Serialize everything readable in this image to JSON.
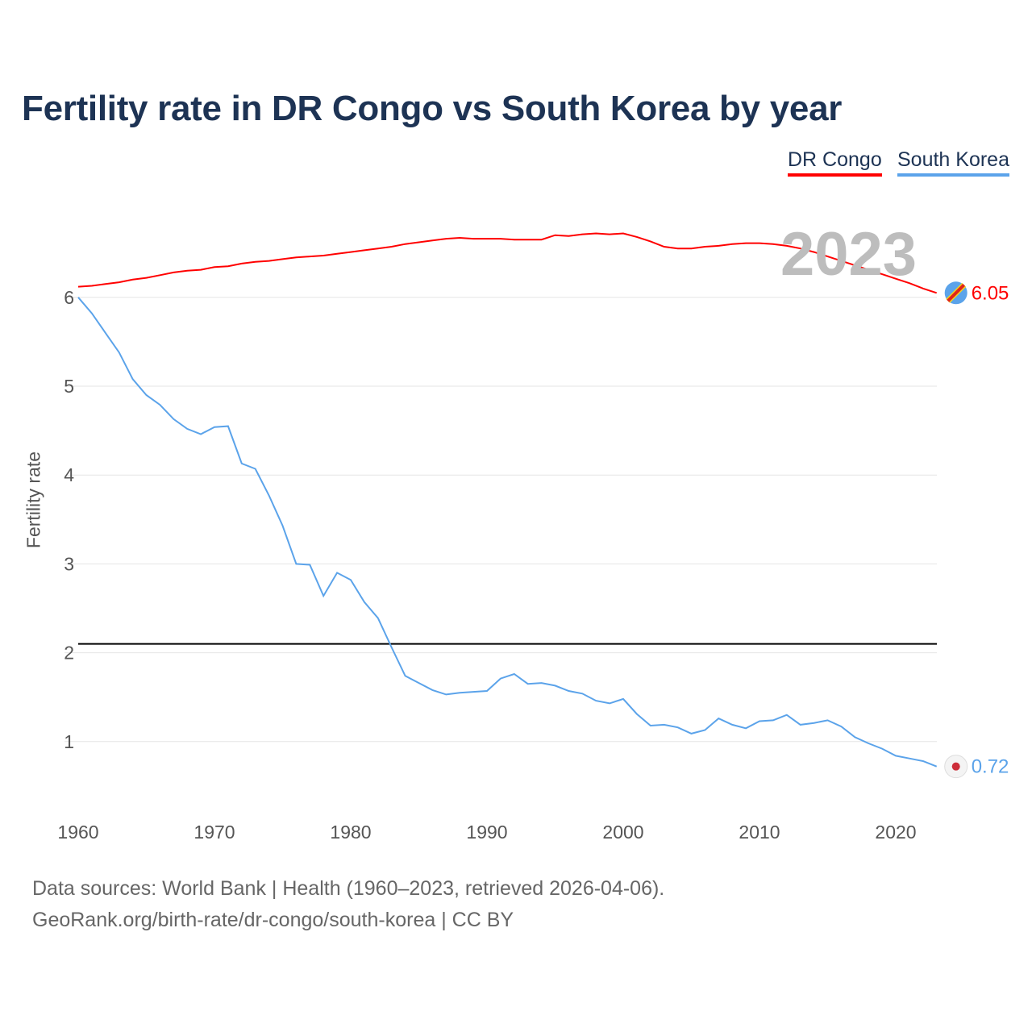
{
  "chart_data": {
    "type": "line",
    "title": "Fertility rate in DR Congo vs South Korea by year",
    "xlabel": "",
    "ylabel": "Fertility rate",
    "xlim": [
      1960,
      2023
    ],
    "ylim": [
      0,
      6.9
    ],
    "x_ticks": [
      1960,
      1970,
      1980,
      1990,
      2000,
      2010,
      2020
    ],
    "y_ticks": [
      1,
      2,
      3,
      4,
      5,
      6
    ],
    "grid": true,
    "legend_position": "top-right",
    "year_label": "2023",
    "reference_line": {
      "value": 2.1,
      "color": "#000000"
    },
    "x": [
      1960,
      1961,
      1962,
      1963,
      1964,
      1965,
      1966,
      1967,
      1968,
      1969,
      1970,
      1971,
      1972,
      1973,
      1974,
      1975,
      1976,
      1977,
      1978,
      1979,
      1980,
      1981,
      1982,
      1983,
      1984,
      1985,
      1986,
      1987,
      1988,
      1989,
      1990,
      1991,
      1992,
      1993,
      1994,
      1995,
      1996,
      1997,
      1998,
      1999,
      2000,
      2001,
      2002,
      2003,
      2004,
      2005,
      2006,
      2007,
      2008,
      2009,
      2010,
      2011,
      2012,
      2013,
      2014,
      2015,
      2016,
      2017,
      2018,
      2019,
      2020,
      2021,
      2022,
      2023
    ],
    "series": [
      {
        "name": "DR Congo",
        "color": "#ff0000",
        "end_label": "6.05",
        "values": [
          6.12,
          6.13,
          6.15,
          6.17,
          6.2,
          6.22,
          6.25,
          6.28,
          6.3,
          6.31,
          6.34,
          6.35,
          6.38,
          6.4,
          6.41,
          6.43,
          6.45,
          6.46,
          6.47,
          6.49,
          6.51,
          6.53,
          6.55,
          6.57,
          6.6,
          6.62,
          6.64,
          6.66,
          6.67,
          6.66,
          6.66,
          6.66,
          6.65,
          6.65,
          6.65,
          6.7,
          6.69,
          6.71,
          6.72,
          6.71,
          6.72,
          6.68,
          6.63,
          6.57,
          6.55,
          6.55,
          6.57,
          6.58,
          6.6,
          6.61,
          6.61,
          6.6,
          6.58,
          6.55,
          6.51,
          6.46,
          6.41,
          6.36,
          6.31,
          6.26,
          6.21,
          6.16,
          6.1,
          6.05
        ]
      },
      {
        "name": "South Korea",
        "color": "#5ba3ea",
        "end_label": "0.72",
        "values": [
          6.0,
          5.82,
          5.6,
          5.38,
          5.08,
          4.9,
          4.79,
          4.63,
          4.52,
          4.46,
          4.54,
          4.55,
          4.13,
          4.07,
          3.77,
          3.43,
          3.0,
          2.99,
          2.64,
          2.9,
          2.82,
          2.57,
          2.39,
          2.06,
          1.74,
          1.66,
          1.58,
          1.53,
          1.55,
          1.56,
          1.57,
          1.71,
          1.76,
          1.65,
          1.66,
          1.63,
          1.57,
          1.54,
          1.46,
          1.43,
          1.48,
          1.31,
          1.18,
          1.19,
          1.16,
          1.09,
          1.13,
          1.26,
          1.19,
          1.15,
          1.23,
          1.24,
          1.3,
          1.19,
          1.21,
          1.24,
          1.17,
          1.05,
          0.98,
          0.92,
          0.84,
          0.81,
          0.78,
          0.72
        ]
      }
    ]
  },
  "footer": {
    "line1": "Data sources: World Bank | Health (1960–2023, retrieved 2026-04-06).",
    "line2": "GeoRank.org/birth-rate/dr-congo/south-korea | CC BY"
  }
}
